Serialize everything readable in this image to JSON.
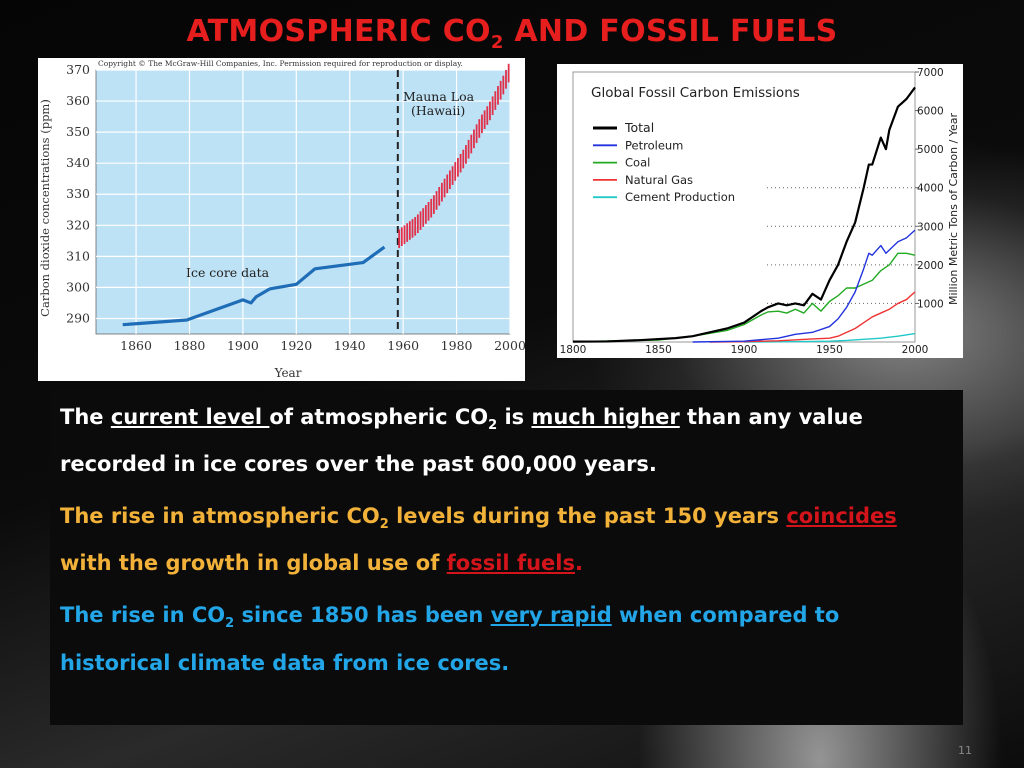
{
  "slide": {
    "title_main": "ATMOSPHERIC CO",
    "title_sub": "2",
    "title_rest": " AND FOSSIL FUELS",
    "slide_number": "11",
    "colors": {
      "title": "#e61e1e",
      "orange": "#f2b23a",
      "blue": "#22a6e8",
      "red": "#d4141b"
    }
  },
  "paragraphs": {
    "p1": {
      "t1": "The ",
      "u1": "current level ",
      "t2": "of atmospheric CO",
      "s1": "2",
      "t3": " is ",
      "u2": "much higher",
      "t4": " than any value recorded in ice cores over the past 600,000 years."
    },
    "p2": {
      "t1": "The rise in atmospheric CO",
      "s1": "2",
      "t2": " levels during the past 150 years ",
      "u1": "coincides",
      "t3": " with the growth in global use of ",
      "u2": "fossil fuels",
      "t4": "."
    },
    "p3": {
      "t1": "The rise in CO",
      "s1": "2",
      "t2": " since 1850 has been ",
      "u1": "very rapid",
      "t3": " when compared to historical climate data from ice cores."
    }
  },
  "chart_data": [
    {
      "type": "line",
      "copyright": "Copyright © The McGraw-Hill Companies, Inc. Permission required for reproduction or display.",
      "xlabel": "Year",
      "ylabel": "Carbon dioxide concentrations (ppm)",
      "xlim": [
        1845,
        2000
      ],
      "ylim": [
        285,
        370
      ],
      "x_ticks": [
        1860,
        1880,
        1900,
        1920,
        1940,
        1960,
        1980,
        2000
      ],
      "y_ticks": [
        290,
        300,
        310,
        320,
        330,
        340,
        350,
        360,
        370
      ],
      "grid": true,
      "divider_year": 1958,
      "annotations": {
        "ice_core": "Ice core data",
        "mauna_loa_1": "Mauna Loa",
        "mauna_loa_2": "(Hawaii)"
      },
      "series": [
        {
          "name": "Ice core data",
          "x": [
            1855,
            1879,
            1900,
            1903,
            1905,
            1910,
            1920,
            1927,
            1945,
            1953
          ],
          "y": [
            288,
            289.5,
            296,
            295,
            297,
            299.5,
            301,
            306,
            308,
            313
          ]
        },
        {
          "name": "Mauna Loa (Hawaii)",
          "x": [
            1959,
            1962,
            1965,
            1968,
            1971,
            1974,
            1977,
            1980,
            1983,
            1986,
            1989,
            1992,
            1995,
            1998,
            1999
          ],
          "y": [
            316,
            318,
            320,
            323,
            326,
            330,
            334,
            338,
            342,
            347,
            352,
            356,
            361,
            366,
            368
          ]
        }
      ]
    },
    {
      "type": "line",
      "title": "Global Fossil Carbon Emissions",
      "ylabel": "Million Metric Tons of Carbon / Year",
      "xlim": [
        1800,
        2000
      ],
      "ylim": [
        0,
        7000
      ],
      "x_ticks": [
        1800,
        1850,
        1900,
        1950,
        2000
      ],
      "y_ticks": [
        1000,
        2000,
        3000,
        4000,
        5000,
        6000,
        7000
      ],
      "y_axis_side": "right",
      "gridlines_dotted": [
        1000,
        2000,
        3000,
        4000
      ],
      "legend_position": "top-left",
      "series": [
        {
          "name": "Total",
          "color": "#000000",
          "x": [
            1800,
            1820,
            1840,
            1860,
            1870,
            1880,
            1890,
            1900,
            1905,
            1910,
            1914,
            1920,
            1925,
            1930,
            1935,
            1940,
            1945,
            1950,
            1955,
            1960,
            1965,
            1970,
            1973,
            1975,
            1980,
            1983,
            1985,
            1990,
            1995,
            2000
          ],
          "y": [
            10,
            15,
            50,
            100,
            150,
            250,
            350,
            500,
            650,
            800,
            900,
            1000,
            950,
            1000,
            950,
            1250,
            1100,
            1600,
            2000,
            2600,
            3100,
            4000,
            4600,
            4600,
            5300,
            5000,
            5500,
            6100,
            6300,
            6600
          ]
        },
        {
          "name": "Petroleum",
          "color": "#2233dd",
          "x": [
            1870,
            1900,
            1920,
            1930,
            1940,
            1950,
            1955,
            1960,
            1965,
            1970,
            1973,
            1975,
            1980,
            1983,
            1990,
            1995,
            2000
          ],
          "y": [
            0,
            20,
            100,
            200,
            250,
            400,
            600,
            900,
            1300,
            1900,
            2300,
            2250,
            2500,
            2300,
            2600,
            2700,
            2900
          ]
        },
        {
          "name": "Coal",
          "color": "#22aa22",
          "x": [
            1800,
            1850,
            1870,
            1890,
            1900,
            1910,
            1914,
            1920,
            1925,
            1930,
            1935,
            1940,
            1945,
            1950,
            1955,
            1960,
            1965,
            1970,
            1975,
            1980,
            1985,
            1990,
            1995,
            2000
          ],
          "y": [
            10,
            50,
            150,
            300,
            450,
            700,
            780,
            800,
            750,
            850,
            750,
            1000,
            800,
            1050,
            1200,
            1400,
            1400,
            1500,
            1600,
            1850,
            2000,
            2300,
            2300,
            2250
          ]
        },
        {
          "name": "Natural Gas",
          "color": "#ee3333",
          "x": [
            1880,
            1900,
            1920,
            1940,
            1950,
            1955,
            1960,
            1965,
            1970,
            1975,
            1980,
            1985,
            1990,
            1995,
            2000
          ],
          "y": [
            0,
            10,
            30,
            80,
            100,
            150,
            250,
            350,
            500,
            650,
            750,
            850,
            1000,
            1100,
            1300
          ]
        },
        {
          "name": "Cement Production",
          "color": "#22c8c8",
          "x": [
            1900,
            1920,
            1940,
            1950,
            1960,
            1970,
            1980,
            1990,
            2000
          ],
          "y": [
            0,
            5,
            15,
            20,
            40,
            70,
            100,
            150,
            220
          ]
        }
      ]
    }
  ]
}
